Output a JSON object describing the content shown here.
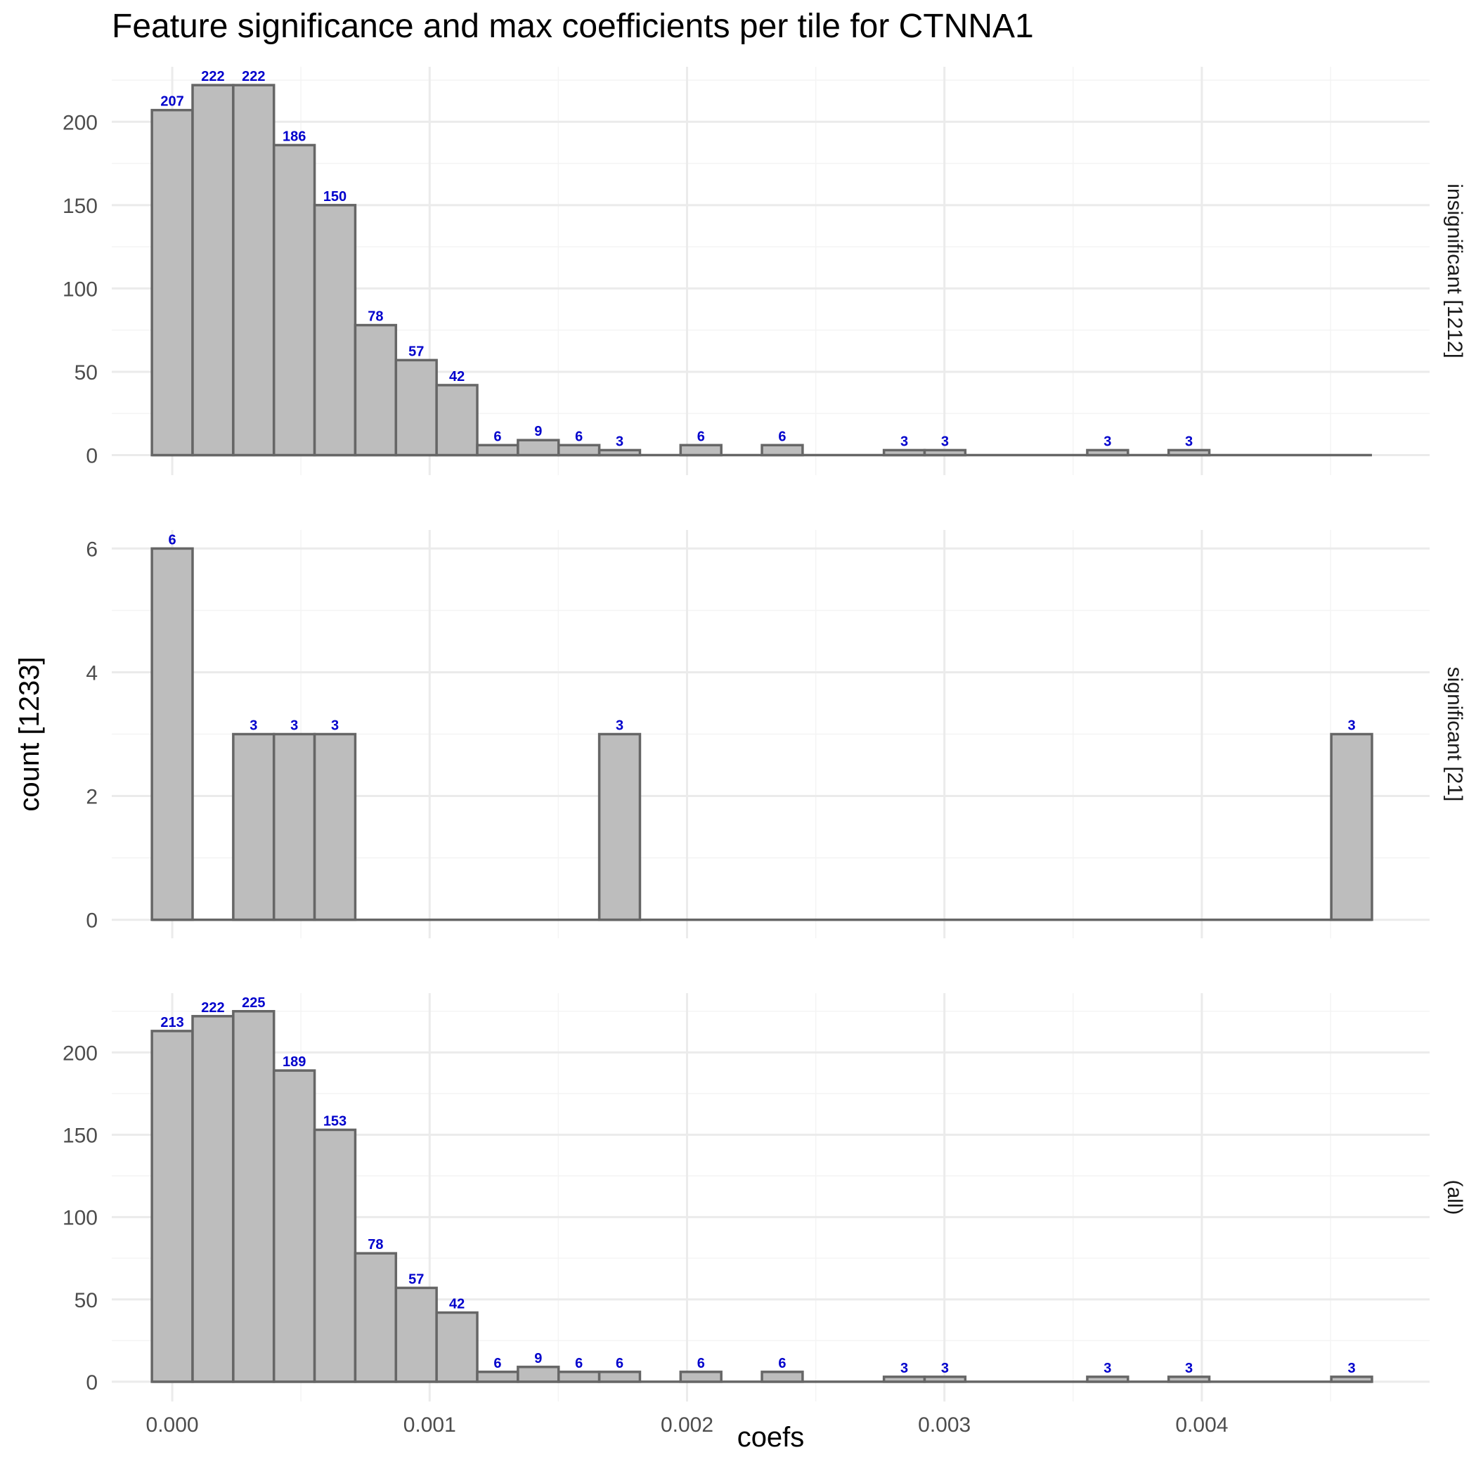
{
  "chart_data": {
    "type": "bar",
    "title": "Feature significance and max coefficients per tile for CTNNA1",
    "xlabel": "coefs",
    "ylabel": "count [1233]",
    "xlim": [
      -0.000235,
      0.004885
    ],
    "x_ticks": [
      0.0,
      0.001,
      0.002,
      0.003,
      0.004
    ],
    "x_tick_labels": [
      "0.000",
      "0.001",
      "0.002",
      "0.003",
      "0.004"
    ],
    "bin_width": 0.000158,
    "bin_starts": [
      -7.9e-05,
      7.9e-05,
      0.000237,
      0.000395,
      0.000553,
      0.000711,
      0.000869,
      0.001027,
      0.001185,
      0.001343,
      0.001501,
      0.001659,
      0.001817,
      0.001975,
      0.002133,
      0.002291,
      0.002449,
      0.002607,
      0.002765,
      0.002923,
      0.003081,
      0.003239,
      0.003397,
      0.003555,
      0.003713,
      0.003871,
      0.004029,
      0.004187,
      0.004345,
      0.004503
    ],
    "grid": true,
    "panels": [
      {
        "label": "insignificant [1212]",
        "ylim": [
          -12,
          233
        ],
        "y_ticks": [
          0,
          50,
          100,
          150,
          200
        ],
        "y_tick_labels": [
          "0",
          "50",
          "100",
          "150",
          "200"
        ],
        "counts": [
          207,
          222,
          222,
          186,
          150,
          78,
          57,
          42,
          6,
          9,
          6,
          3,
          0,
          6,
          0,
          6,
          0,
          0,
          3,
          3,
          0,
          0,
          0,
          3,
          0,
          3,
          0,
          0,
          0,
          0
        ]
      },
      {
        "label": "significant [21]",
        "ylim": [
          -0.3,
          6.3
        ],
        "y_ticks": [
          0,
          2,
          4,
          6
        ],
        "y_tick_labels": [
          "0",
          "2",
          "4",
          "6"
        ],
        "counts": [
          6,
          0,
          3,
          3,
          3,
          0,
          0,
          0,
          0,
          0,
          0,
          3,
          0,
          0,
          0,
          0,
          0,
          0,
          0,
          0,
          0,
          0,
          0,
          0,
          0,
          0,
          0,
          0,
          0,
          3
        ]
      },
      {
        "label": "(all)",
        "ylim": [
          -12,
          236
        ],
        "y_ticks": [
          0,
          50,
          100,
          150,
          200
        ],
        "y_tick_labels": [
          "0",
          "50",
          "100",
          "150",
          "200"
        ],
        "counts": [
          213,
          222,
          225,
          189,
          153,
          78,
          57,
          42,
          6,
          9,
          6,
          6,
          0,
          6,
          0,
          6,
          0,
          0,
          3,
          3,
          0,
          0,
          0,
          3,
          0,
          3,
          0,
          0,
          0,
          3
        ]
      }
    ],
    "colors": {
      "bar_fill": "#bdbdbd",
      "bar_stroke": "#666666",
      "data_label": "#0000cc",
      "grid_major": "#ebebeb",
      "grid_minor": "#f4f4f4"
    }
  }
}
